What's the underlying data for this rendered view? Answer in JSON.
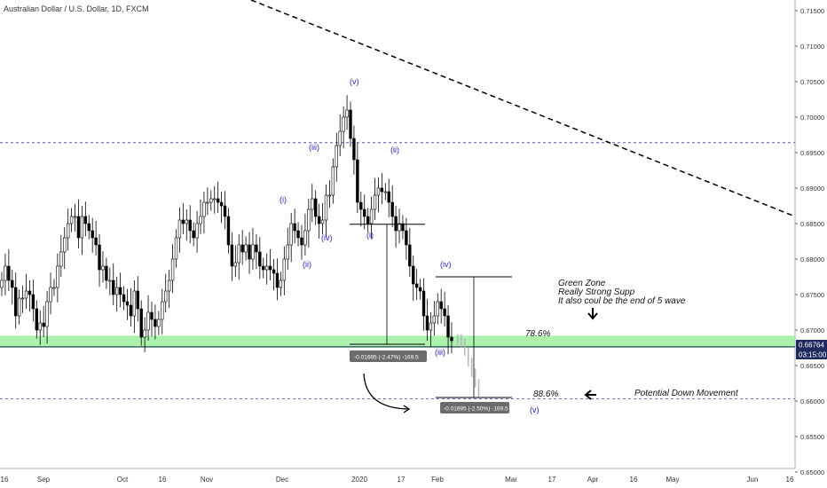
{
  "header": {
    "symbol_title": "Australian Dollar / U.S. Dollar, 1D, FXCM"
  },
  "price_badge": {
    "price": "0.66764",
    "countdown": "03:15:00",
    "color": "#1e2a5e"
  },
  "colors": {
    "up": "#ffffff",
    "down": "#000000",
    "green_zone": "#90ee90",
    "wave_label": "#1f1fb4",
    "guide": "#3a3ab8"
  },
  "annotations": {
    "green_zone_note": [
      "Green Zone",
      "Really Strong Supp",
      "It also coul be the end of 5 wave"
    ],
    "fib_786": "78.6%",
    "fib_886": "88.6%",
    "potential_move": "Potential Down Movement",
    "measure_1": "-0.01695 (-2.47%) -169.5",
    "measure_2": "-0.01695 (-2.50%) -169.5",
    "wave_labels": [
      "(v)",
      "(iii)",
      "(ii)",
      "(i)",
      "(iv)",
      "(ii)",
      "(i)",
      "(iv)",
      "(iii)",
      "(v)"
    ],
    "icons": [
      "arrow-down-icon",
      "arrow-left-icon",
      "curved-arrow-icon"
    ]
  },
  "chart_data": {
    "type": "candlestick",
    "title": "Australian Dollar / U.S. Dollar, 1D, FXCM",
    "ylim": [
      0.6505,
      0.7165
    ],
    "y_ticks": [
      "0.71500",
      "0.71000",
      "0.70500",
      "0.70000",
      "0.69500",
      "0.69000",
      "0.68500",
      "0.68000",
      "0.67500",
      "0.67000",
      "0.66500",
      "0.66000",
      "0.65500",
      "0.65000"
    ],
    "x_ticks": [
      "16",
      "Sep",
      "Oct",
      "16",
      "Nov",
      "Dec",
      "2020",
      "17",
      "Feb",
      "Mar",
      "17",
      "Apr",
      "16",
      "May",
      "Jun",
      "16"
    ],
    "last_price": 0.66764,
    "green_zone": [
      0.6675,
      0.6692
    ],
    "horizontal_levels": [
      0.6964,
      0.6603
    ],
    "ohlc_close": [
      0.677,
      0.679,
      0.677,
      0.676,
      0.672,
      0.6745,
      0.6745,
      0.6755,
      0.675,
      0.673,
      0.67,
      0.671,
      0.6705,
      0.674,
      0.676,
      0.676,
      0.679,
      0.681,
      0.683,
      0.685,
      0.686,
      0.686,
      0.683,
      0.686,
      0.685,
      0.684,
      0.683,
      0.682,
      0.6785,
      0.679,
      0.677,
      0.677,
      0.675,
      0.676,
      0.675,
      0.674,
      0.6735,
      0.672,
      0.6755,
      0.673,
      0.669,
      0.67,
      0.6725,
      0.6715,
      0.6705,
      0.6715,
      0.674,
      0.6755,
      0.677,
      0.68,
      0.683,
      0.6855,
      0.685,
      0.6855,
      0.684,
      0.683,
      0.685,
      0.686,
      0.688,
      0.688,
      0.6885,
      0.6885,
      0.688,
      0.6875,
      0.686,
      0.682,
      0.679,
      0.6795,
      0.682,
      0.681,
      0.682,
      0.68,
      0.682,
      0.681,
      0.679,
      0.6785,
      0.679,
      0.6785,
      0.678,
      0.676,
      0.677,
      0.68,
      0.682,
      0.685,
      0.684,
      0.683,
      0.682,
      0.684,
      0.687,
      0.6885,
      0.686,
      0.685,
      0.6855,
      0.689,
      0.689,
      0.693,
      0.696,
      0.698,
      0.7,
      0.701,
      0.697,
      0.694,
      0.688,
      0.687,
      0.686,
      0.685,
      0.687,
      0.689,
      0.69,
      0.6895,
      0.6895,
      0.688,
      0.686,
      0.684,
      0.685,
      0.684,
      0.682,
      0.679,
      0.6765,
      0.676,
      0.6755,
      0.672,
      0.67,
      0.671,
      0.672,
      0.674,
      0.673,
      0.672,
      0.669,
      0.6685
    ],
    "projection": {
      "points": [
        "(iii) 0.6675",
        "(iv) 0.6775",
        "(v) 0.6603"
      ]
    },
    "trendline": {
      "from_y": 0.7165,
      "to_y": 0.686,
      "style": "dashed"
    },
    "grid": false
  }
}
